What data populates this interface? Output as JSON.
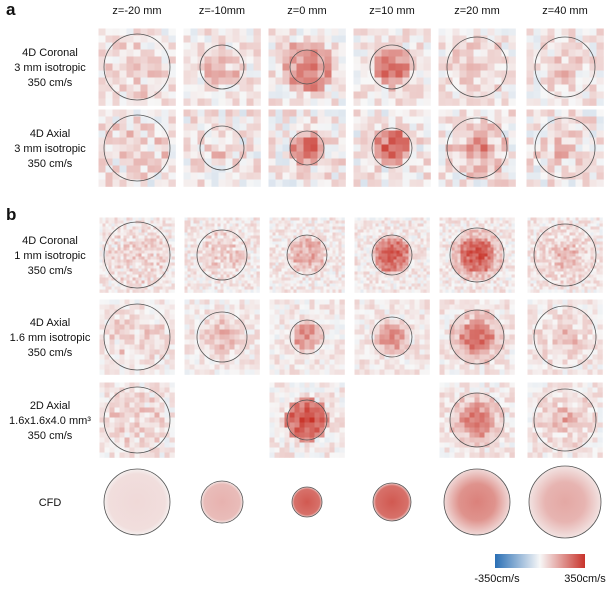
{
  "panels": [
    {
      "letter": "a",
      "rows": [
        {
          "label": [
            "4D Coronal",
            "3 mm isotropic",
            "350 cm/s"
          ]
        },
        {
          "label": [
            "4D Axial",
            "3 mm isotropic",
            "350 cm/s"
          ]
        }
      ]
    },
    {
      "letter": "b",
      "rows": [
        {
          "label": [
            "4D Coronal",
            "1  mm isotropic",
            "350 cm/s"
          ]
        },
        {
          "label": [
            "4D Axial",
            "1.6 mm isotropic",
            "350 cm/s"
          ]
        },
        {
          "label": [
            "2D Axial",
            "1.6x1.6x4.0 mm³",
            "350 cm/s"
          ]
        },
        {
          "label": [
            "CFD"
          ]
        }
      ]
    }
  ],
  "columns": [
    "z=-20 mm",
    "z=-10mm",
    "z=0 mm",
    "z=10 mm",
    "z=20 mm",
    "z=40 mm"
  ],
  "colorbar": {
    "min_label": "-350cm/s",
    "max_label": "350cm/s"
  }
}
